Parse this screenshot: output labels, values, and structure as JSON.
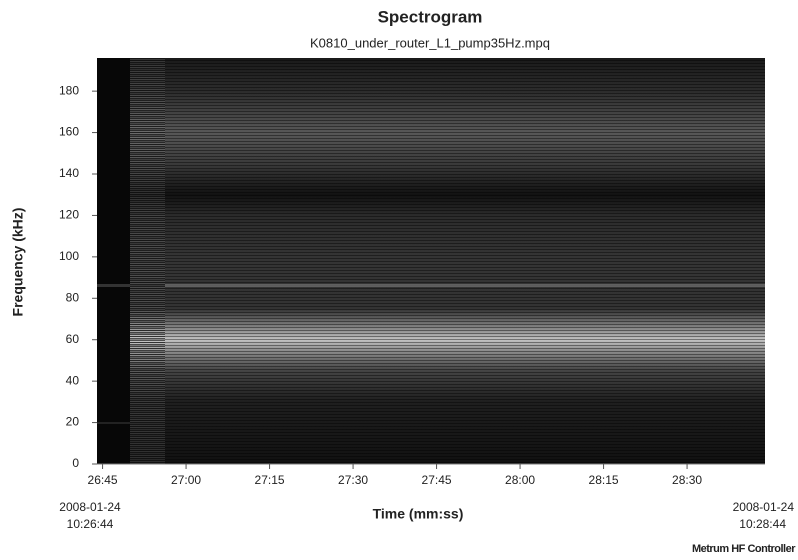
{
  "chart_data": {
    "type": "spectrogram",
    "title": "Spectrogram",
    "subtitle": "K0810_under_router_L1_pump35Hz.mpq",
    "x_label": "Time (mm:ss)",
    "y_label": "Frequency (kHz)",
    "xlim": [
      1604,
      1724
    ],
    "xticks": [
      {
        "value": 1605,
        "label": "26:45"
      },
      {
        "value": 1620,
        "label": "27:00"
      },
      {
        "value": 1635,
        "label": "27:15"
      },
      {
        "value": 1650,
        "label": "27:30"
      },
      {
        "value": 1665,
        "label": "27:45"
      },
      {
        "value": 1680,
        "label": "28:00"
      },
      {
        "value": 1695,
        "label": "28:15"
      },
      {
        "value": 1710,
        "label": "28:30"
      }
    ],
    "ylim": [
      0,
      196
    ],
    "yticks": [
      0,
      20,
      40,
      60,
      80,
      100,
      120,
      140,
      160,
      180
    ],
    "start_label": [
      "2008-01-24",
      "10:26:44"
    ],
    "end_label": [
      "2008-01-24",
      "10:28:44"
    ],
    "footer": "Metrum HF Controller"
  }
}
